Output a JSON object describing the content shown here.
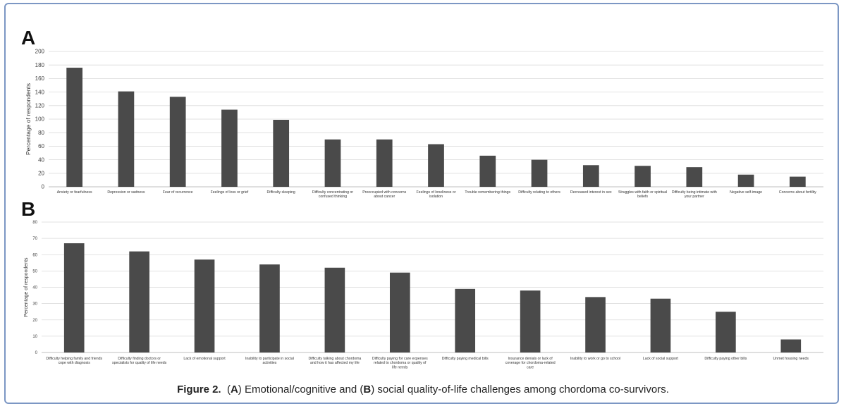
{
  "caption": {
    "label": "Figure 2.",
    "p1": "(",
    "a": "A",
    "p2": ") Emotional/cognitive and (",
    "b": "B",
    "p3": ") social quality-of-life challenges among chordoma co-survivors."
  },
  "chart_data": [
    {
      "panel": "A",
      "type": "bar",
      "ylabel": "Percentage of respondents",
      "ylim": [
        0,
        200
      ],
      "yticks": [
        "0",
        "20",
        "40",
        "60",
        "80",
        "100",
        "120",
        "140",
        "160",
        "180",
        "200"
      ],
      "grid": true,
      "bar_color": "#4a4a4a",
      "categories": [
        [
          "Anxiety or fearfulness"
        ],
        [
          "Depression or sadness"
        ],
        [
          "Fear of recurrence"
        ],
        [
          "Feelings of loss or grief"
        ],
        [
          "Difficulty sleeping"
        ],
        [
          "Difficulty concentrating or",
          "confused thinking"
        ],
        [
          "Preoccupied with concerns",
          "about cancer"
        ],
        [
          "Feelings of loneliness or",
          "isolation"
        ],
        [
          "Trouble remembering things"
        ],
        [
          "Difficulty relating to others"
        ],
        [
          "Decreased interest in sex"
        ],
        [
          "Struggles with faith or spiritual",
          "beliefs"
        ],
        [
          "Difficulty being intimate with",
          "your partner"
        ],
        [
          "Negative self-image"
        ],
        [
          "Concerns about fertility"
        ]
      ],
      "values": [
        176,
        141,
        133,
        114,
        99,
        70,
        70,
        63,
        46,
        40,
        32,
        31,
        29,
        18,
        15
      ]
    },
    {
      "panel": "B",
      "type": "bar",
      "ylabel": "Percentage of respondents",
      "ylim": [
        0,
        80
      ],
      "yticks": [
        "0",
        "10",
        "20",
        "30",
        "40",
        "50",
        "60",
        "70",
        "80"
      ],
      "grid": true,
      "bar_color": "#4a4a4a",
      "categories": [
        [
          "Difficulty helping family and friends",
          "cope with diagnosis"
        ],
        [
          "Difficulty finding doctors or",
          "specialists for quality of life needs"
        ],
        [
          "Lack of emotional support"
        ],
        [
          "Inability to participate in social",
          "activities"
        ],
        [
          "Difficulty talking about chordoma",
          "and how it has affected my life"
        ],
        [
          "Difficulty paying for care expenses",
          "related to chordoma or quality of",
          "life needs"
        ],
        [
          "Difficulty paying medical bills"
        ],
        [
          "Insurance denials or lack of",
          "coverage for chordoma-related",
          "care"
        ],
        [
          "Inability to work or go to school"
        ],
        [
          "Lack of social support"
        ],
        [
          "Difficulty paying other bills"
        ],
        [
          "Unmet housing needs"
        ]
      ],
      "values": [
        67,
        62,
        57,
        54,
        52,
        49,
        39,
        38,
        34,
        33,
        25,
        8
      ]
    }
  ]
}
